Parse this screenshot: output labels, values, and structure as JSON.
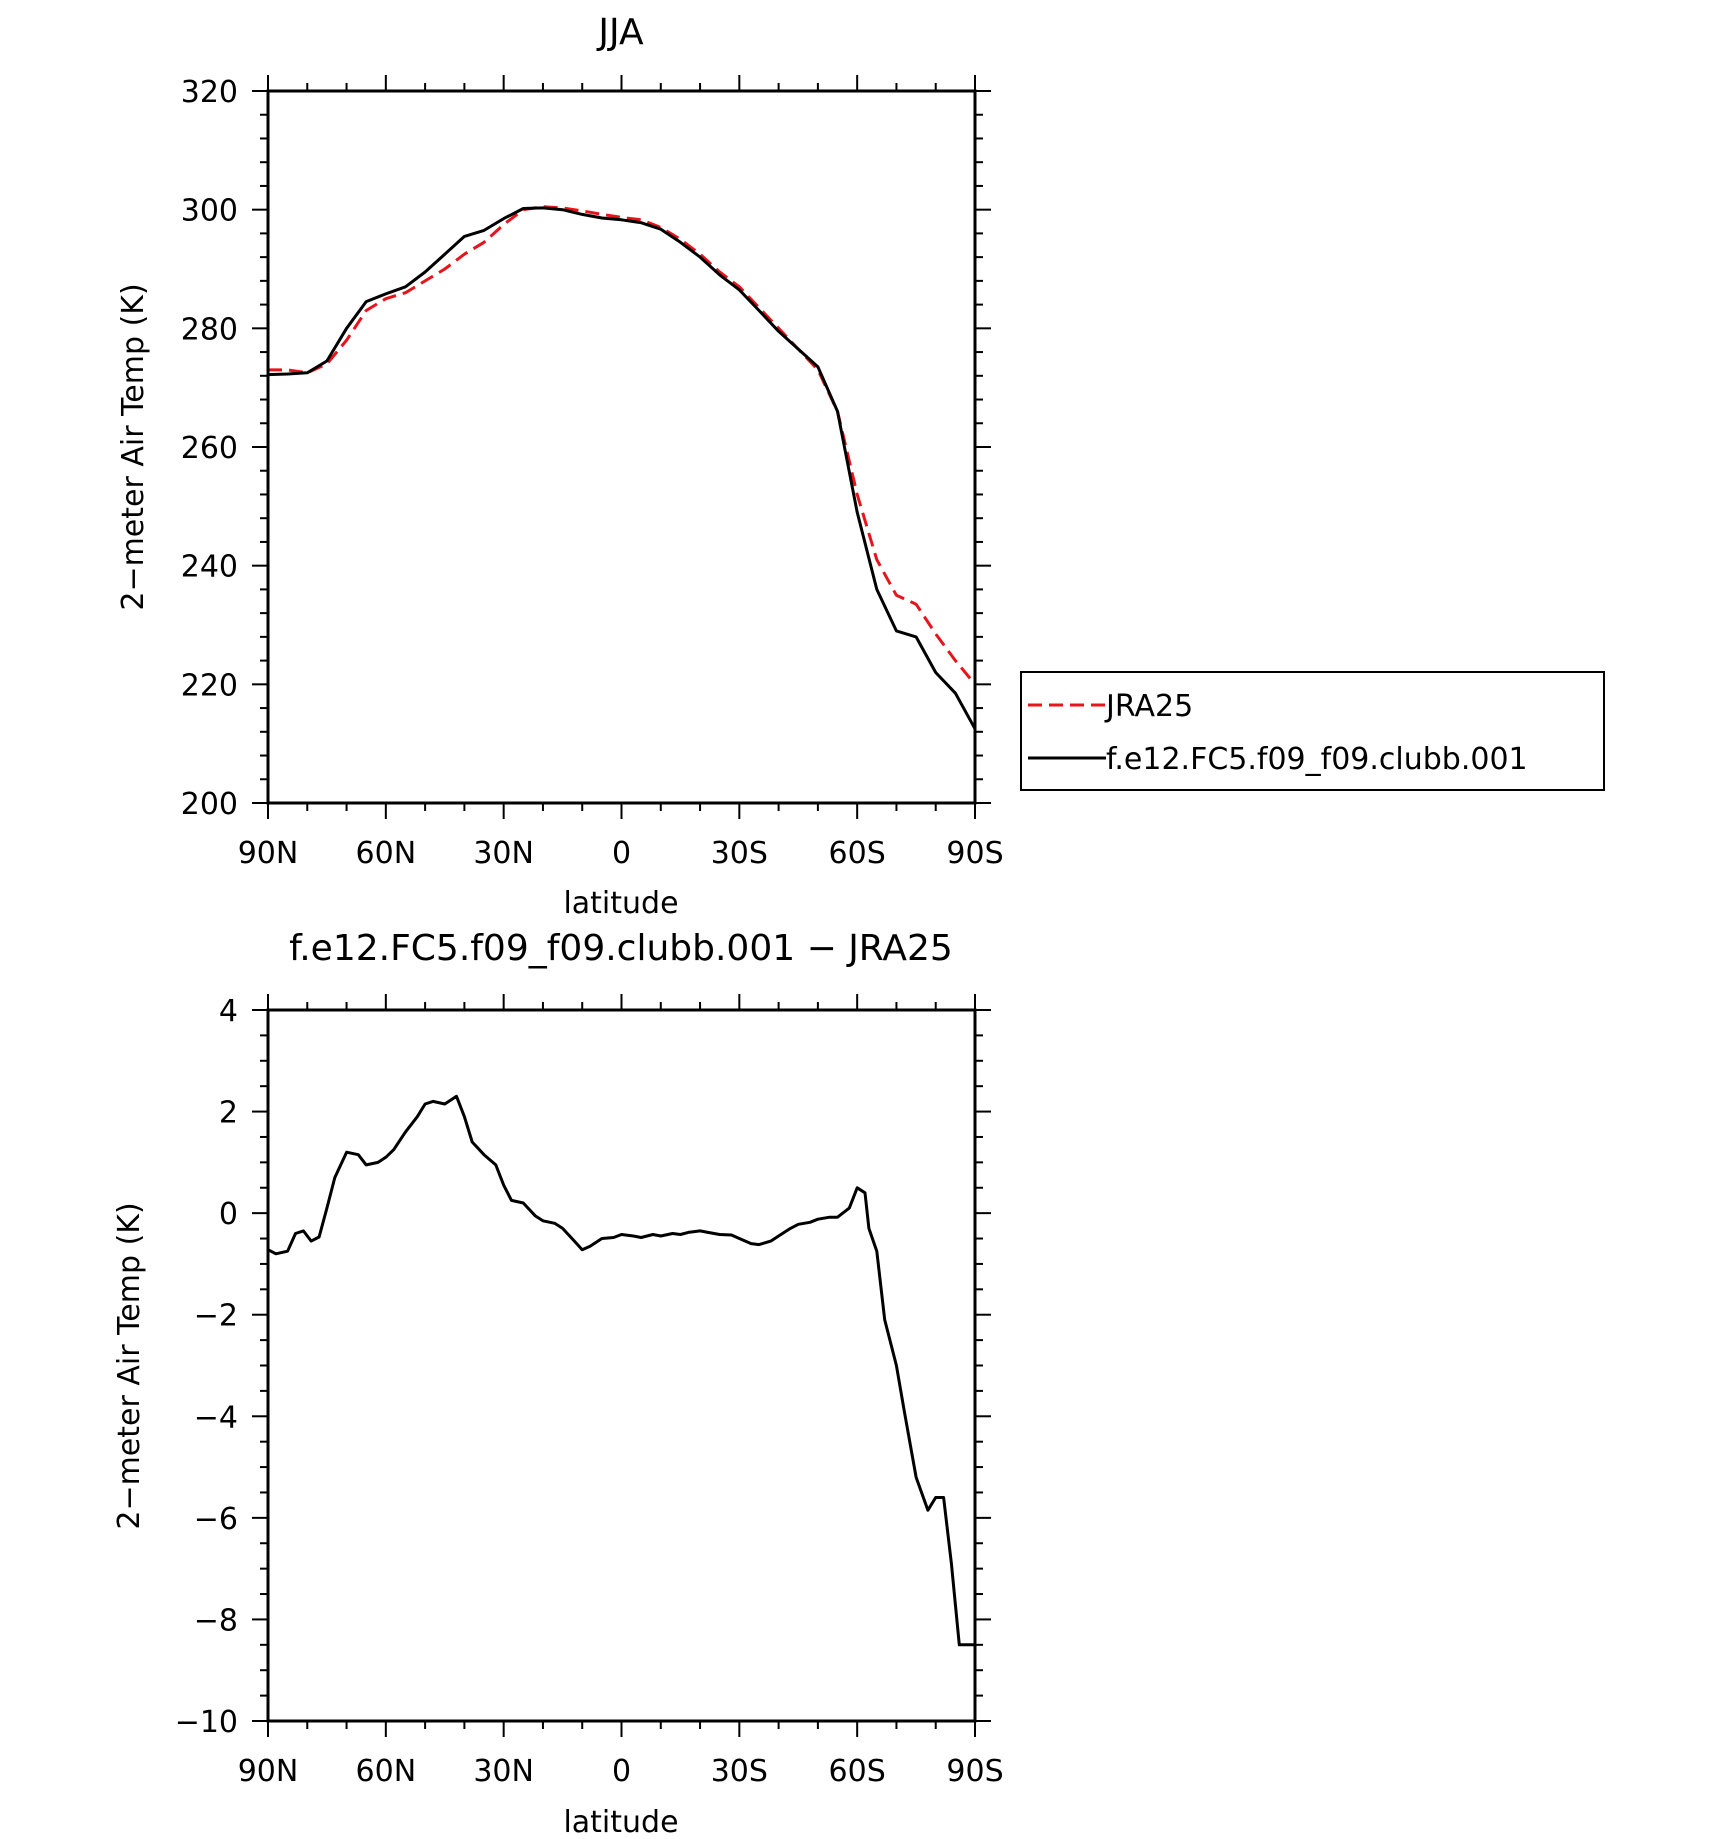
{
  "chart_data": [
    {
      "type": "line",
      "title": "JJA",
      "xlabel": "latitude",
      "ylabel": "2−meter Air Temp (K)",
      "xlim": [
        90,
        -90
      ],
      "ylim": [
        200,
        320
      ],
      "xticks": [
        90,
        60,
        30,
        0,
        -30,
        -60,
        -90
      ],
      "xtick_labels": [
        "90N",
        "60N",
        "30N",
        "0",
        "30S",
        "60S",
        "90S"
      ],
      "yticks": [
        200,
        220,
        240,
        260,
        280,
        300,
        320
      ],
      "ytick_labels": [
        "200",
        "220",
        "240",
        "260",
        "280",
        "300",
        "320"
      ],
      "legend_position": "right",
      "series": [
        {
          "name": "JRA25",
          "color": "#e8141c",
          "dash": "dashed",
          "x": [
            90,
            85,
            80,
            75,
            70,
            65,
            60,
            55,
            50,
            45,
            40,
            35,
            30,
            25,
            20,
            15,
            10,
            5,
            0,
            -5,
            -10,
            -15,
            -20,
            -25,
            -30,
            -35,
            -40,
            -45,
            -50,
            -55,
            -60,
            -65,
            -70,
            -75,
            -80,
            -85,
            -90
          ],
          "y": [
            273,
            273,
            272.5,
            274,
            278,
            283,
            285,
            286,
            288,
            290,
            292.5,
            294.5,
            297.5,
            300,
            300.5,
            300.3,
            299.8,
            299.2,
            298.7,
            298.3,
            297,
            295,
            292.5,
            289.5,
            287,
            283.5,
            280,
            276.5,
            273,
            266,
            252,
            241,
            235,
            233.5,
            228.5,
            224,
            220
          ]
        },
        {
          "name": "f.e12.FC5.f09_f09.clubb.001",
          "color": "#000000",
          "dash": "solid",
          "x": [
            90,
            85,
            80,
            75,
            70,
            65,
            60,
            55,
            50,
            45,
            40,
            35,
            30,
            25,
            20,
            15,
            10,
            5,
            0,
            -5,
            -10,
            -15,
            -20,
            -25,
            -30,
            -35,
            -40,
            -45,
            -50,
            -55,
            -60,
            -65,
            -70,
            -75,
            -80,
            -85,
            -90
          ],
          "y": [
            272.2,
            272.3,
            272.5,
            274.5,
            280,
            284.5,
            285.8,
            287,
            289.5,
            292.5,
            295.5,
            296.5,
            298.5,
            300.2,
            300.3,
            300,
            299.2,
            298.6,
            298.3,
            297.8,
            296.7,
            294.5,
            292,
            289,
            286.5,
            283,
            279.5,
            276.5,
            273.5,
            266,
            249,
            236,
            229,
            228,
            222,
            218.5,
            212.5
          ]
        }
      ]
    },
    {
      "type": "line",
      "title": "f.e12.FC5.f09_f09.clubb.001 − JRA25",
      "xlabel": "latitude",
      "ylabel": "2−meter Air Temp (K)",
      "xlim": [
        90,
        -90
      ],
      "ylim": [
        -10,
        4
      ],
      "xticks": [
        90,
        60,
        30,
        0,
        -30,
        -60,
        -90
      ],
      "xtick_labels": [
        "90N",
        "60N",
        "30N",
        "0",
        "30S",
        "60S",
        "90S"
      ],
      "yticks": [
        4,
        2,
        0,
        -2,
        -4,
        -6,
        -8,
        -10
      ],
      "ytick_labels": [
        "4",
        "2",
        "0",
        "−2",
        "−4",
        "−6",
        "−8",
        "−10"
      ],
      "series": [
        {
          "color": "#000000",
          "dash": "solid",
          "x": [
            90,
            88,
            85,
            83,
            81,
            79,
            77,
            75,
            73,
            70,
            67,
            65,
            62,
            60,
            58,
            55,
            52,
            50,
            48,
            45,
            42,
            40,
            38,
            35,
            32,
            30,
            28,
            25,
            22,
            20,
            17,
            15,
            12,
            10,
            8,
            5,
            2,
            0,
            -3,
            -5,
            -8,
            -10,
            -13,
            -15,
            -17,
            -20,
            -22,
            -25,
            -28,
            -30,
            -33,
            -35,
            -38,
            -40,
            -43,
            -45,
            -48,
            -50,
            -53,
            -55,
            -58,
            -60,
            -62,
            -63,
            -65,
            -67,
            -70,
            -72,
            -75,
            -78,
            -80,
            -82,
            -84,
            -86,
            -90
          ],
          "y": [
            -0.72,
            -0.8,
            -0.75,
            -0.4,
            -0.35,
            -0.55,
            -0.47,
            0.1,
            0.7,
            1.2,
            1.15,
            0.95,
            1.0,
            1.1,
            1.25,
            1.6,
            1.9,
            2.15,
            2.2,
            2.15,
            2.3,
            1.9,
            1.4,
            1.15,
            0.95,
            0.55,
            0.25,
            0.2,
            -0.05,
            -0.15,
            -0.2,
            -0.3,
            -0.55,
            -0.72,
            -0.65,
            -0.5,
            -0.48,
            -0.42,
            -0.45,
            -0.48,
            -0.42,
            -0.45,
            -0.4,
            -0.42,
            -0.38,
            -0.35,
            -0.38,
            -0.42,
            -0.43,
            -0.5,
            -0.6,
            -0.62,
            -0.55,
            -0.45,
            -0.3,
            -0.22,
            -0.18,
            -0.12,
            -0.08,
            -0.08,
            0.1,
            0.5,
            0.4,
            -0.3,
            -0.75,
            -2.1,
            -3.0,
            -3.9,
            -5.2,
            -5.85,
            -5.6,
            -5.6,
            -6.9,
            -8.5,
            -8.5
          ]
        }
      ]
    }
  ]
}
